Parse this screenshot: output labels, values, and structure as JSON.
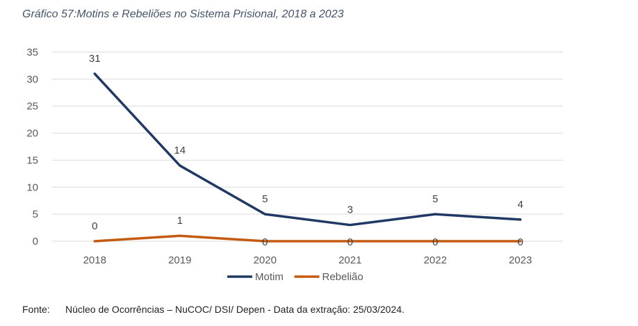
{
  "title": "Gráfico 57:Motins e Rebeliões no Sistema Prisional, 2018 a 2023",
  "source_label": "Fonte:",
  "source_text": "Núcleo de Ocorrências – NuCOC/ DSI/ Depen - Data da extração: 25/03/2024.",
  "chart_data": {
    "type": "line",
    "categories": [
      "2018",
      "2019",
      "2020",
      "2021",
      "2022",
      "2023"
    ],
    "series": [
      {
        "name": "Motim",
        "values": [
          31,
          14,
          5,
          3,
          5,
          4
        ],
        "color": "#1f3864"
      },
      {
        "name": "Rebelião",
        "values": [
          0,
          1,
          0,
          0,
          0,
          0
        ],
        "color": "#c55a11"
      }
    ],
    "ylim": [
      0,
      35
    ],
    "yticks": [
      0,
      5,
      10,
      15,
      20,
      25,
      30,
      35
    ],
    "grid": true,
    "legend": "bottom",
    "gridColor": "#d9d9d9"
  }
}
